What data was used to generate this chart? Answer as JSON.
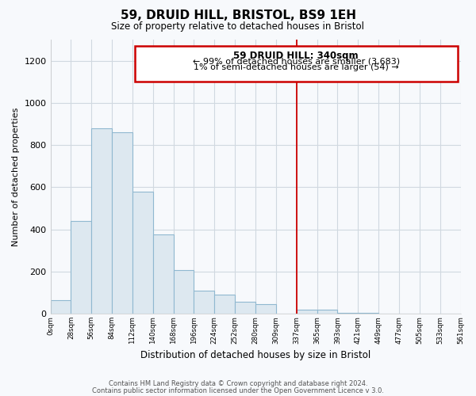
{
  "title": "59, DRUID HILL, BRISTOL, BS9 1EH",
  "subtitle": "Size of property relative to detached houses in Bristol",
  "xlabel": "Distribution of detached houses by size in Bristol",
  "ylabel": "Number of detached properties",
  "bar_color": "#dde8f0",
  "bar_edge_color": "#90b8d0",
  "bin_labels": [
    "0sqm",
    "28sqm",
    "56sqm",
    "84sqm",
    "112sqm",
    "140sqm",
    "168sqm",
    "196sqm",
    "224sqm",
    "252sqm",
    "280sqm",
    "309sqm",
    "337sqm",
    "365sqm",
    "393sqm",
    "421sqm",
    "449sqm",
    "477sqm",
    "505sqm",
    "533sqm",
    "561sqm"
  ],
  "bar_heights": [
    65,
    440,
    880,
    860,
    580,
    375,
    205,
    110,
    90,
    55,
    45,
    0,
    20,
    18,
    5,
    3,
    0,
    0,
    0,
    0
  ],
  "property_line_label": "59 DRUID HILL: 340sqm",
  "annotation_line1": "← 99% of detached houses are smaller (3,683)",
  "annotation_line2": "1% of semi-detached houses are larger (54) →",
  "annotation_box_color": "#ffffff",
  "annotation_box_edge_color": "#cc0000",
  "line_color": "#cc0000",
  "footer1": "Contains HM Land Registry data © Crown copyright and database right 2024.",
  "footer2": "Contains public sector information licensed under the Open Government Licence v 3.0.",
  "background_color": "#f7f9fc",
  "ylim": [
    0,
    1300
  ],
  "grid_color": "#d0d8e0",
  "property_line_bin_index": 12
}
